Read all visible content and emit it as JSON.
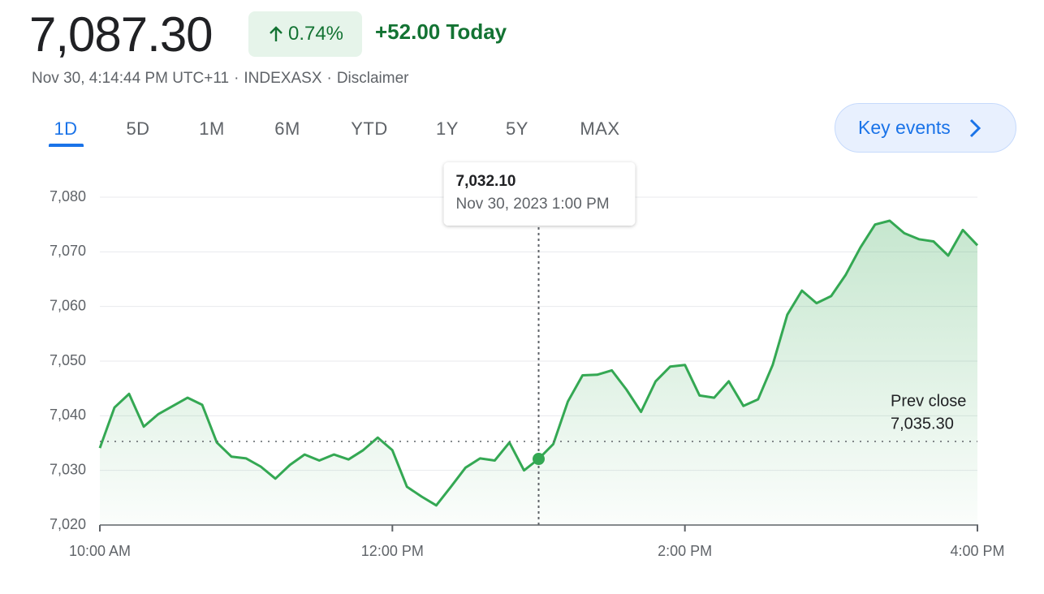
{
  "header": {
    "price": "7,087.30",
    "change_percent": "0.74%",
    "change": "+52.00",
    "change_label": "Today",
    "timestamp": "Nov 30, 4:14:44 PM UTC+11",
    "exchange": "INDEXASX",
    "disclaimer": "Disclaimer",
    "separator": "·"
  },
  "tabs": [
    "1D",
    "5D",
    "1M",
    "6M",
    "YTD",
    "1Y",
    "5Y",
    "MAX"
  ],
  "key_events": "Key events",
  "chart_data": {
    "type": "line",
    "color": "#34a853",
    "grid": true,
    "x": [
      10.0,
      10.1,
      10.2,
      10.3,
      10.4,
      10.5,
      10.6,
      10.7,
      10.8,
      10.9,
      11.0,
      11.1,
      11.2,
      11.3,
      11.4,
      11.5,
      11.6,
      11.7,
      11.8,
      11.9,
      12.0,
      12.1,
      12.2,
      12.3,
      12.4,
      12.5,
      12.6,
      12.7,
      12.8,
      12.9,
      13.0,
      13.1,
      13.2,
      13.3,
      13.4,
      13.5,
      13.6,
      13.7,
      13.8,
      13.9,
      14.0,
      14.1,
      14.2,
      14.3,
      14.4,
      14.5,
      14.6,
      14.7,
      14.8,
      14.9,
      15.0,
      15.1,
      15.2,
      15.3,
      15.4,
      15.5,
      15.6,
      15.7,
      15.8,
      15.9,
      16.0
    ],
    "values": [
      7034.1,
      7041.5,
      7044.0,
      7038.0,
      7040.3,
      7041.8,
      7043.3,
      7042.0,
      7035.1,
      7032.5,
      7032.2,
      7030.7,
      7028.5,
      7031.0,
      7032.9,
      7031.8,
      7032.9,
      7032.0,
      7033.7,
      7036.0,
      7033.7,
      7027.0,
      7025.2,
      7023.6,
      7027.0,
      7030.5,
      7032.2,
      7031.8,
      7035.1,
      7030.0,
      7032.1,
      7034.8,
      7042.6,
      7047.4,
      7047.5,
      7048.3,
      7044.8,
      7040.7,
      7046.3,
      7049.0,
      7049.3,
      7043.7,
      7043.3,
      7046.3,
      7041.8,
      7043.0,
      7049.3,
      7058.5,
      7062.9,
      7060.6,
      7061.9,
      7065.8,
      7070.8,
      7075.0,
      7075.7,
      7073.4,
      7072.3,
      7071.9,
      7069.3,
      7074.0,
      7071.2
    ],
    "xlim": [
      10,
      16
    ],
    "xticks": [
      {
        "value": 10,
        "label": "10:00 AM"
      },
      {
        "value": 12,
        "label": "12:00 PM"
      },
      {
        "value": 14,
        "label": "2:00 PM"
      },
      {
        "value": 16,
        "label": "4:00 PM"
      }
    ],
    "ylim": [
      7020,
      7080
    ],
    "yticks": [
      {
        "value": 7020,
        "label": "7,020"
      },
      {
        "value": 7030,
        "label": "7,030"
      },
      {
        "value": 7040,
        "label": "7,040"
      },
      {
        "value": 7050,
        "label": "7,050"
      },
      {
        "value": 7060,
        "label": "7,060"
      },
      {
        "value": 7070,
        "label": "7,070"
      },
      {
        "value": 7080,
        "label": "7,080"
      }
    ],
    "prev_close": {
      "label": "Prev close",
      "value": 7035.3,
      "value_label": "7,035.30"
    },
    "hover": {
      "x": 13,
      "value": 7032.1,
      "value_label": "7,032.10",
      "date_label": "Nov 30, 2023 1:00 PM"
    }
  }
}
